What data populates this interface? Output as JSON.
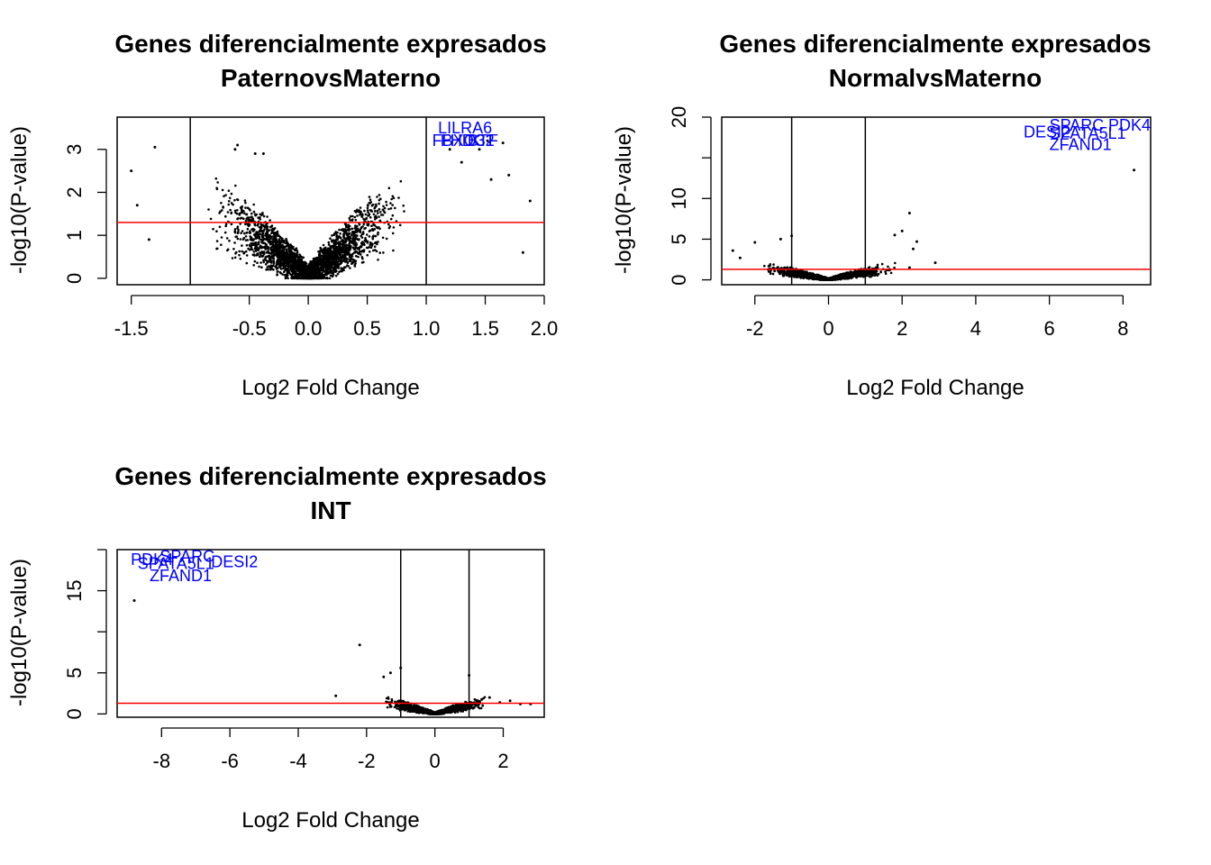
{
  "chart_data": [
    {
      "type": "scatter",
      "title": [
        "Genes diferencialmente expresados",
        "PaternovsMaterno"
      ],
      "xlabel": "Log2 Fold Change",
      "ylabel": "-log10(P-value)",
      "xlim": [
        -1.62,
        2.0
      ],
      "ylim": [
        -0.15,
        3.75
      ],
      "xticks": [
        -1.5,
        -0.5,
        0.0,
        0.5,
        1.0,
        1.5,
        2.0
      ],
      "xtick_labels": [
        "-1.5",
        "-0.5",
        "0.0",
        "0.5",
        "1.0",
        "1.5",
        "2.0"
      ],
      "yticks": [
        0,
        1,
        2,
        3
      ],
      "ytick_labels": [
        "0",
        "1",
        "2",
        "3"
      ],
      "vlines": [
        -1,
        1
      ],
      "hline": 1.3,
      "hline_color": "#ff0000",
      "point_color": "#000000",
      "label_color": "#0000ff",
      "gene_labels": [
        {
          "text": "LILRA6",
          "x": 1.1,
          "y": 3.5
        },
        {
          "text": "FBXO32",
          "x": 1.05,
          "y": 3.2
        },
        {
          "text": "FHDC1",
          "x": 1.12,
          "y": 3.2
        },
        {
          "text": "BTF",
          "x": 1.35,
          "y": 3.2
        }
      ],
      "points": [
        [
          -0.62,
          3.0
        ],
        [
          -1.3,
          3.05
        ],
        [
          -0.6,
          3.1
        ],
        [
          -1.5,
          2.5
        ],
        [
          -1.45,
          1.7
        ],
        [
          -1.35,
          0.9
        ],
        [
          1.45,
          3.0
        ],
        [
          1.52,
          3.2
        ],
        [
          1.65,
          3.15
        ],
        [
          1.7,
          2.4
        ],
        [
          1.88,
          1.8
        ],
        [
          1.82,
          0.6
        ],
        [
          1.3,
          2.7
        ],
        [
          1.55,
          2.3
        ],
        [
          1.2,
          3.0
        ],
        [
          -0.45,
          2.9
        ],
        [
          -0.38,
          2.9
        ]
      ],
      "cloud": {
        "lfc_sd": 0.42,
        "max_abs_lfc": 1.45,
        "n_points": 2600,
        "v_scale": 4.0
      }
    },
    {
      "type": "scatter",
      "title": [
        "Genes diferencialmente expresados",
        "NormalvsMaterno"
      ],
      "xlabel": "Log2 Fold Change",
      "ylabel": "-log10(P-value)",
      "xlim": [
        -2.9,
        8.75
      ],
      "ylim": [
        -0.6,
        20.0
      ],
      "xticks": [
        -2,
        0,
        2,
        4,
        6,
        8
      ],
      "xtick_labels": [
        "-2",
        "0",
        "2",
        "4",
        "6",
        "8"
      ],
      "yticks": [
        0,
        5,
        10,
        15,
        20
      ],
      "ytick_labels": [
        "0",
        "5",
        "10",
        "",
        "20"
      ],
      "vlines": [
        -1,
        1
      ],
      "hline": 1.3,
      "hline_color": "#ff0000",
      "point_color": "#000000",
      "label_color": "#0000ff",
      "gene_labels": [
        {
          "text": "SPARC",
          "x": 6.0,
          "y": 19.0
        },
        {
          "text": "PDK4",
          "x": 7.6,
          "y": 19.0
        },
        {
          "text": "DESI2",
          "x": 5.3,
          "y": 18.2
        },
        {
          "text": "SPATA5L1",
          "x": 6.0,
          "y": 18.0
        },
        {
          "text": "ZFAND1",
          "x": 6.0,
          "y": 16.6
        }
      ],
      "points": [
        [
          8.3,
          13.5
        ],
        [
          2.2,
          8.2
        ],
        [
          2.9,
          2.1
        ],
        [
          2.4,
          4.7
        ],
        [
          2.3,
          3.8
        ],
        [
          2.0,
          6.0
        ],
        [
          1.8,
          5.5
        ],
        [
          -2.0,
          4.6
        ],
        [
          -2.6,
          3.6
        ],
        [
          -2.4,
          2.7
        ],
        [
          -1.0,
          5.4
        ],
        [
          -1.3,
          5.0
        ],
        [
          2.2,
          1.5
        ]
      ],
      "cloud": {
        "lfc_sd": 0.85,
        "max_abs_lfc": 1.95,
        "n_points": 1800,
        "v_scale": 2.4
      }
    },
    {
      "type": "scatter",
      "title": [
        "Genes diferencialmente expresados",
        "INT"
      ],
      "xlabel": "Log2 Fold Change",
      "ylabel": "-log10(P-value)",
      "xlim": [
        -9.3,
        3.2
      ],
      "ylim": [
        -0.4,
        20.0
      ],
      "xticks": [
        -8,
        -6,
        -4,
        -2,
        0,
        2
      ],
      "xtick_labels": [
        "-8",
        "-6",
        "-4",
        "-2",
        "0",
        "2"
      ],
      "yticks": [
        0,
        5,
        10,
        15,
        20
      ],
      "ytick_labels": [
        "0",
        "5",
        "",
        "15",
        ""
      ],
      "vlines": [
        -1,
        1
      ],
      "hline": 1.3,
      "hline_color": "#ff0000",
      "point_color": "#000000",
      "label_color": "#0000ff",
      "gene_labels": [
        {
          "text": "PDK4",
          "x": -8.9,
          "y": 18.8
        },
        {
          "text": "SPARC",
          "x": -8.05,
          "y": 19.2
        },
        {
          "text": "SPATA5L1",
          "x": -8.7,
          "y": 18.3
        },
        {
          "text": "DESI2",
          "x": -6.55,
          "y": 18.5
        },
        {
          "text": "ZFAND1",
          "x": -8.35,
          "y": 16.8
        }
      ],
      "points": [
        [
          -8.8,
          13.8
        ],
        [
          -2.2,
          8.4
        ],
        [
          -2.9,
          2.2
        ],
        [
          -1.0,
          5.6
        ],
        [
          -1.3,
          5.0
        ],
        [
          -1.5,
          4.5
        ],
        [
          1.0,
          4.7
        ],
        [
          1.6,
          2.0
        ],
        [
          2.2,
          1.6
        ],
        [
          2.5,
          1.2
        ],
        [
          2.8,
          1.2
        ],
        [
          1.9,
          1.4
        ]
      ],
      "cloud": {
        "lfc_sd": 0.75,
        "max_abs_lfc": 1.7,
        "n_points": 1500,
        "v_scale": 2.4
      }
    }
  ]
}
